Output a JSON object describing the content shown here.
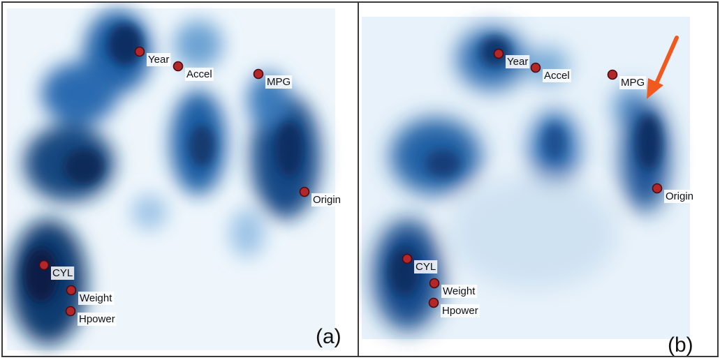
{
  "panels": [
    {
      "id": "a",
      "letter": "(a)",
      "variables": [
        {
          "name": "Year",
          "label": "Year"
        },
        {
          "name": "Accel",
          "label": "Accel"
        },
        {
          "name": "MPG",
          "label": "MPG"
        },
        {
          "name": "Origin",
          "label": "Origin"
        },
        {
          "name": "CYL",
          "label": "CYL"
        },
        {
          "name": "Weight",
          "label": "Weight"
        },
        {
          "name": "Hpower",
          "label": "Hpower"
        }
      ]
    },
    {
      "id": "b",
      "letter": "(b)",
      "variables": [
        {
          "name": "Year",
          "label": "Year"
        },
        {
          "name": "Accel",
          "label": "Accel"
        },
        {
          "name": "MPG",
          "label": "MPG"
        },
        {
          "name": "Origin",
          "label": "Origin"
        },
        {
          "name": "CYL",
          "label": "CYL"
        },
        {
          "name": "Weight",
          "label": "Weight"
        },
        {
          "name": "Hpower",
          "label": "Hpower"
        }
      ]
    }
  ],
  "colors": {
    "density_dark": "#0d2f63",
    "density_mid": "#2a6ab0",
    "density_light": "#d9eaf7",
    "marker_fill": "#b3262a",
    "arrow": "#f05a1e"
  }
}
